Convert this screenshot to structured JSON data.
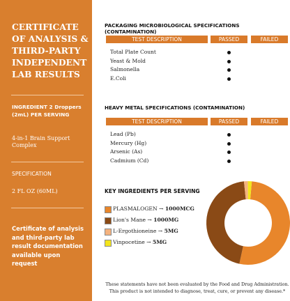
{
  "sidebar": {
    "title": "CERTIFICATE OF ANALYSIS & THIRD-PARTY INDEPENDENT LAB RESULTS",
    "ingredient_label": "INGREDIENT 2 Droppers (2mL) PER SERVING",
    "ingredient_value": "4-in-1 Brain Support Complex",
    "spec_label": "SPECIFICATION",
    "spec_value": "2 FL OZ (60ML)",
    "note": "Certificate of analysis and third-party lab result documentation available upon request"
  },
  "sections": [
    {
      "title": "PACKAGING MICROBIOLOGICAL SPECIFICATIONS (CONTAMINATION)",
      "headers": [
        "TEST DESCRIPTION",
        "PASSED",
        "FAILED"
      ],
      "rows": [
        "Total Plate Count",
        "Yeast & Mold",
        "Salmonella",
        "E.Coli"
      ]
    },
    {
      "title": "HEAVY METAL SPECIFICATIONS (CONTAMINATION)",
      "headers": [
        "TEST DESCRIPTION",
        "PASSED",
        "FAILED"
      ],
      "rows": [
        "Lead (Pb)",
        "Mercury (Hg)",
        "Arsenic (As)",
        "Cadmium (Cd)"
      ]
    }
  ],
  "chart_data": {
    "type": "pie",
    "title": "KEY INGREDIENTS PER SERVING",
    "categories": [
      "PLASMALOGEN →",
      "Lion's Mane →",
      "L-Ergothioneine →",
      "Vinpocetine →"
    ],
    "amounts": [
      "1000MCG",
      "1000MG",
      "5MG",
      "5MG"
    ],
    "values": [
      52,
      45,
      1.5,
      1.5
    ],
    "colors": [
      "#e8862b",
      "#8a4a16",
      "#f4b27e",
      "#f3e51c"
    ]
  },
  "footer": "These statements have not been evaluated by the Food and Drug Administration. This product is not intended to diagnose, treat, cure, or prevent any disease.*"
}
